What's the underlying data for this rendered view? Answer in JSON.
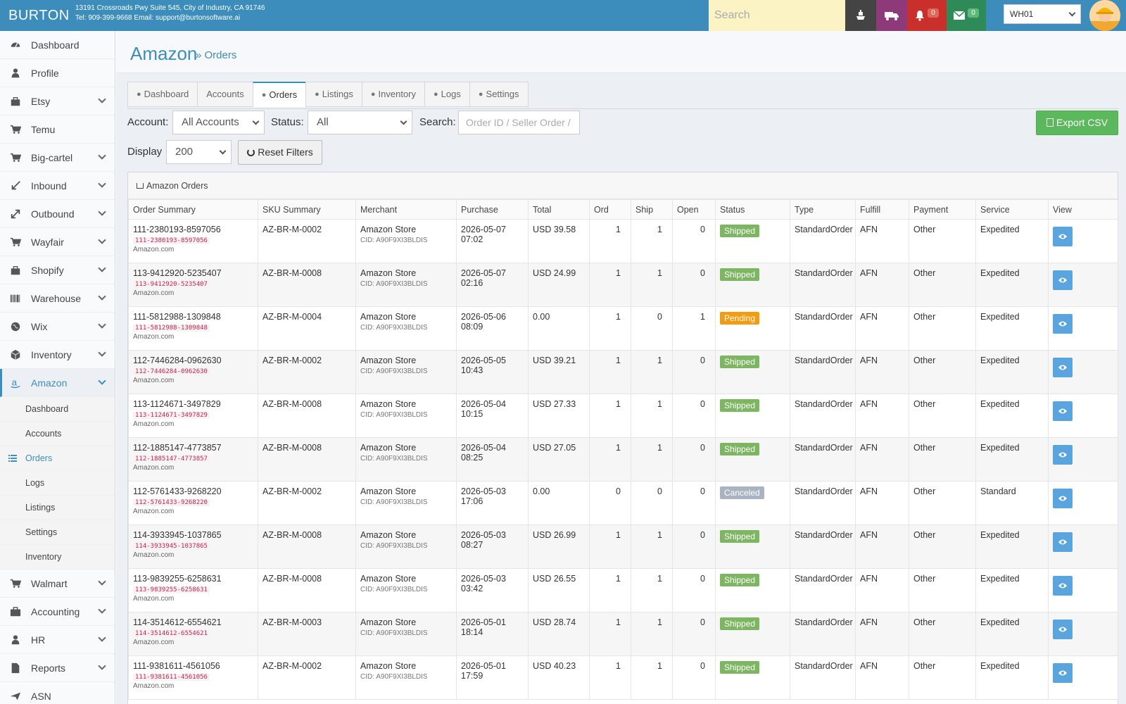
{
  "header": {
    "logo": "BURTON",
    "address": "13191 Crossroads Pwy Suite 545, City of Industry, CA 91746",
    "contact": "Tel: 909-399-9668 Email: support@burtonsoftware.ai",
    "search_placeholder": "Search",
    "notifications_count": "0",
    "messages_count": "0",
    "warehouse": "WH01"
  },
  "sidebar": {
    "items": [
      {
        "label": "Dashboard",
        "icon": "dashboard-icon"
      },
      {
        "label": "Profile",
        "icon": "user-icon"
      },
      {
        "label": "Etsy",
        "icon": "bag-icon"
      },
      {
        "label": "Temu",
        "icon": "cart-icon"
      },
      {
        "label": "Big-cartel",
        "icon": "cart-icon"
      },
      {
        "label": "Inbound",
        "icon": "inbound-icon"
      },
      {
        "label": "Outbound",
        "icon": "outbound-icon"
      },
      {
        "label": "Wayfair",
        "icon": "cart-icon"
      },
      {
        "label": "Shopify",
        "icon": "bag-icon"
      },
      {
        "label": "Warehouse",
        "icon": "barcode-icon"
      },
      {
        "label": "Wix",
        "icon": "globe-icon"
      },
      {
        "label": "Inventory",
        "icon": "cube-icon"
      },
      {
        "label": "Amazon",
        "icon": "amazon-icon"
      }
    ],
    "amazon_sub": [
      "Dashboard",
      "Accounts",
      "Orders",
      "Logs",
      "Listings",
      "Settings",
      "Inventory"
    ],
    "items_after": [
      {
        "label": "Walmart",
        "icon": "cart-icon"
      },
      {
        "label": "Accounting",
        "icon": "briefcase-icon"
      },
      {
        "label": "HR",
        "icon": "user-icon"
      },
      {
        "label": "Reports",
        "icon": "file-icon"
      },
      {
        "label": "ASN",
        "icon": "plane-icon"
      }
    ]
  },
  "page": {
    "title": "Amazon",
    "subtitle": "» Orders"
  },
  "tabs": [
    "Dashboard",
    "Accounts",
    "Orders",
    "Listings",
    "Inventory",
    "Logs",
    "Settings"
  ],
  "filters": {
    "account_label": "Account:",
    "account_value": "All Accounts",
    "status_label": "Status:",
    "status_value": "All",
    "search_label": "Search:",
    "search_placeholder": "Order ID / Seller Order /",
    "display_label": "Display",
    "display_value": "200",
    "reset_label": "Reset Filters",
    "export_label": "Export CSV"
  },
  "table": {
    "title": "Amazon Orders",
    "columns": [
      "Order Summary",
      "SKU Summary",
      "Merchant",
      "Purchase",
      "Total",
      "Ord",
      "Ship",
      "Open",
      "Status",
      "Type",
      "Fulfill",
      "Payment",
      "Service",
      "View"
    ],
    "rows": [
      {
        "order": "111-2380193-8597056",
        "source": "Amazon.com",
        "sku": "AZ-BR-M-0002",
        "merchant": "Amazon Store",
        "cid": "CID: A90F9XI3BLDIS",
        "date": "2026-05-07",
        "time": "07:02",
        "total": "USD 39.58",
        "ord": "1",
        "ship": "1",
        "open": "0",
        "status": "Shipped",
        "type": "StandardOrder",
        "fulfill": "AFN",
        "payment": "Other",
        "service": "Expedited"
      },
      {
        "order": "113-9412920-5235407",
        "source": "Amazon.com",
        "sku": "AZ-BR-M-0008",
        "merchant": "Amazon Store",
        "cid": "CID: A90F9XI3BLDIS",
        "date": "2026-05-07",
        "time": "02:16",
        "total": "USD 24.99",
        "ord": "1",
        "ship": "1",
        "open": "0",
        "status": "Shipped",
        "type": "StandardOrder",
        "fulfill": "AFN",
        "payment": "Other",
        "service": "Expedited"
      },
      {
        "order": "111-5812988-1309848",
        "source": "Amazon.com",
        "sku": "AZ-BR-M-0004",
        "merchant": "Amazon Store",
        "cid": "CID: A90F9XI3BLDIS",
        "date": "2026-05-06",
        "time": "08:09",
        "total": "0.00",
        "ord": "1",
        "ship": "0",
        "open": "1",
        "status": "Pending",
        "type": "StandardOrder",
        "fulfill": "AFN",
        "payment": "Other",
        "service": "Expedited"
      },
      {
        "order": "112-7446284-0962630",
        "source": "Amazon.com",
        "sku": "AZ-BR-M-0002",
        "merchant": "Amazon Store",
        "cid": "CID: A90F9XI3BLDIS",
        "date": "2026-05-05",
        "time": "10:43",
        "total": "USD 39.21",
        "ord": "1",
        "ship": "1",
        "open": "0",
        "status": "Shipped",
        "type": "StandardOrder",
        "fulfill": "AFN",
        "payment": "Other",
        "service": "Expedited"
      },
      {
        "order": "113-1124671-3497829",
        "source": "Amazon.com",
        "sku": "AZ-BR-M-0008",
        "merchant": "Amazon Store",
        "cid": "CID: A90F9XI3BLDIS",
        "date": "2026-05-04",
        "time": "10:15",
        "total": "USD 27.33",
        "ord": "1",
        "ship": "1",
        "open": "0",
        "status": "Shipped",
        "type": "StandardOrder",
        "fulfill": "AFN",
        "payment": "Other",
        "service": "Expedited"
      },
      {
        "order": "112-1885147-4773857",
        "source": "Amazon.com",
        "sku": "AZ-BR-M-0008",
        "merchant": "Amazon Store",
        "cid": "CID: A90F9XI3BLDIS",
        "date": "2026-05-04",
        "time": "08:25",
        "total": "USD 27.05",
        "ord": "1",
        "ship": "1",
        "open": "0",
        "status": "Shipped",
        "type": "StandardOrder",
        "fulfill": "AFN",
        "payment": "Other",
        "service": "Expedited"
      },
      {
        "order": "112-5761433-9268220",
        "source": "Amazon.com",
        "sku": "AZ-BR-M-0002",
        "merchant": "Amazon Store",
        "cid": "CID: A90F9XI3BLDIS",
        "date": "2026-05-03",
        "time": "17:06",
        "total": "0.00",
        "ord": "0",
        "ship": "0",
        "open": "0",
        "status": "Canceled",
        "type": "StandardOrder",
        "fulfill": "AFN",
        "payment": "Other",
        "service": "Standard"
      },
      {
        "order": "114-3933945-1037865",
        "source": "Amazon.com",
        "sku": "AZ-BR-M-0008",
        "merchant": "Amazon Store",
        "cid": "CID: A90F9XI3BLDIS",
        "date": "2026-05-03",
        "time": "08:27",
        "total": "USD 26.99",
        "ord": "1",
        "ship": "1",
        "open": "0",
        "status": "Shipped",
        "type": "StandardOrder",
        "fulfill": "AFN",
        "payment": "Other",
        "service": "Expedited"
      },
      {
        "order": "113-9839255-6258631",
        "source": "Amazon.com",
        "sku": "AZ-BR-M-0008",
        "merchant": "Amazon Store",
        "cid": "CID: A90F9XI3BLDIS",
        "date": "2026-05-03",
        "time": "03:42",
        "total": "USD 26.55",
        "ord": "1",
        "ship": "1",
        "open": "0",
        "status": "Shipped",
        "type": "StandardOrder",
        "fulfill": "AFN",
        "payment": "Other",
        "service": "Expedited"
      },
      {
        "order": "114-3514612-6554621",
        "source": "Amazon.com",
        "sku": "AZ-BR-M-0003",
        "merchant": "Amazon Store",
        "cid": "CID: A90F9XI3BLDIS",
        "date": "2026-05-01",
        "time": "18:14",
        "total": "USD 28.74",
        "ord": "1",
        "ship": "1",
        "open": "0",
        "status": "Shipped",
        "type": "StandardOrder",
        "fulfill": "AFN",
        "payment": "Other",
        "service": "Expedited"
      },
      {
        "order": "111-9381611-4561056",
        "source": "Amazon.com",
        "sku": "AZ-BR-M-0002",
        "merchant": "Amazon Store",
        "cid": "CID: A90F9XI3BLDIS",
        "date": "2026-05-01",
        "time": "17:59",
        "total": "USD 40.23",
        "ord": "1",
        "ship": "1",
        "open": "0",
        "status": "Shipped",
        "type": "StandardOrder",
        "fulfill": "AFN",
        "payment": "Other",
        "service": "Expedited"
      }
    ]
  },
  "colors": {
    "header": "#3c8dbc",
    "shipped": "#7cb661",
    "pending": "#f39c12",
    "canceled": "#a9b4c2",
    "export": "#5cb85c",
    "view_button": "#5aa5dd"
  }
}
